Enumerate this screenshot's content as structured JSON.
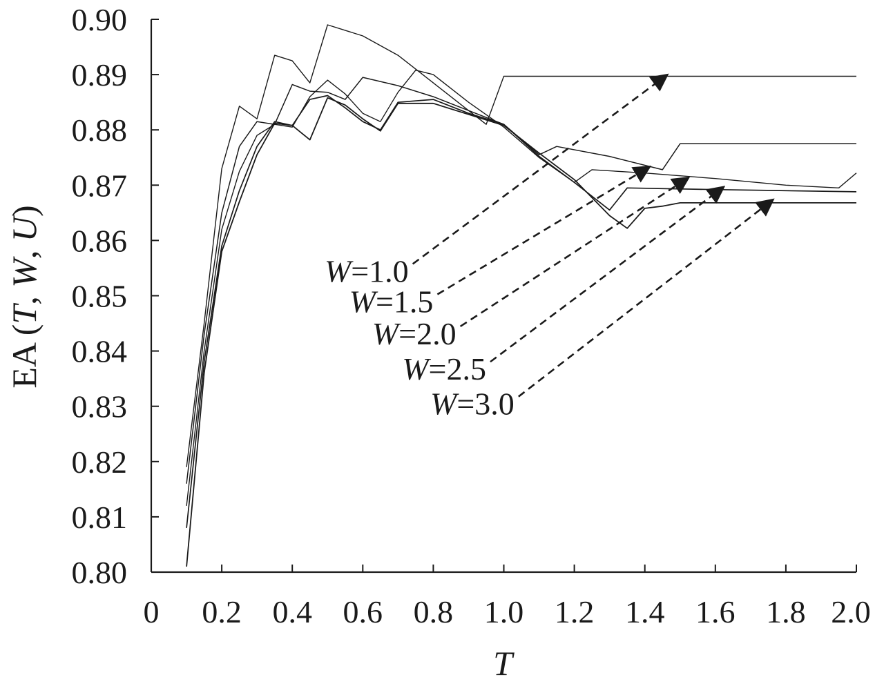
{
  "chart_data": {
    "type": "line",
    "title": "",
    "xlabel": "T",
    "ylabel": {
      "prefix": "EA (",
      "v1": "T",
      "sep1": ", ",
      "v2": "W",
      "sep2": ", ",
      "v3": "U",
      "suffix": ")"
    },
    "xlim": [
      0,
      2.0
    ],
    "ylim": [
      0.8,
      0.9
    ],
    "xticks": [
      "0",
      "0.2",
      "0.4",
      "0.6",
      "0.8",
      "1.0",
      "1.2",
      "1.4",
      "1.6",
      "1.8",
      "2.0"
    ],
    "yticks": [
      "0.80",
      "0.81",
      "0.82",
      "0.83",
      "0.84",
      "0.85",
      "0.86",
      "0.87",
      "0.88",
      "0.89",
      "0.90"
    ],
    "grid": false,
    "line_color": "#1a1a1a",
    "series": [
      {
        "name": "W=1.0",
        "points": [
          [
            0.1,
            0.819
          ],
          [
            0.15,
            0.845
          ],
          [
            0.2,
            0.873
          ],
          [
            0.25,
            0.8843
          ],
          [
            0.3,
            0.882
          ],
          [
            0.35,
            0.8935
          ],
          [
            0.4,
            0.8925
          ],
          [
            0.45,
            0.8885
          ],
          [
            0.5,
            0.899
          ],
          [
            0.6,
            0.897
          ],
          [
            0.7,
            0.8935
          ],
          [
            0.8,
            0.8885
          ],
          [
            0.9,
            0.8835
          ],
          [
            0.95,
            0.881
          ],
          [
            1.0,
            0.8897
          ],
          [
            1.2,
            0.8897
          ],
          [
            1.4,
            0.8897
          ],
          [
            1.6,
            0.8897
          ],
          [
            1.8,
            0.8897
          ],
          [
            2.0,
            0.8897
          ]
        ],
        "arrow_to": [
          1.46,
          0.8898
        ],
        "label": {
          "var": "W",
          "eq": "=1.0",
          "at": [
            0.73,
            0.8545
          ]
        }
      },
      {
        "name": "W=1.5",
        "points": [
          [
            0.1,
            0.816
          ],
          [
            0.15,
            0.843
          ],
          [
            0.2,
            0.865
          ],
          [
            0.25,
            0.877
          ],
          [
            0.3,
            0.8815
          ],
          [
            0.35,
            0.881
          ],
          [
            0.4,
            0.8882
          ],
          [
            0.45,
            0.887
          ],
          [
            0.5,
            0.8868
          ],
          [
            0.55,
            0.8855
          ],
          [
            0.6,
            0.8895
          ],
          [
            0.7,
            0.888
          ],
          [
            0.8,
            0.886
          ],
          [
            0.9,
            0.8835
          ],
          [
            1.0,
            0.881
          ],
          [
            1.1,
            0.8755
          ],
          [
            1.15,
            0.877
          ],
          [
            1.3,
            0.8752
          ],
          [
            1.45,
            0.8728
          ],
          [
            1.5,
            0.8775
          ],
          [
            1.7,
            0.8775
          ],
          [
            2.0,
            0.8775
          ]
        ],
        "arrow_to": [
          1.41,
          0.8732
        ],
        "label": {
          "var": "W",
          "eq": "=1.5",
          "at": [
            0.8,
            0.849
          ]
        }
      },
      {
        "name": "W=2.0",
        "points": [
          [
            0.1,
            0.812
          ],
          [
            0.15,
            0.84
          ],
          [
            0.2,
            0.862
          ],
          [
            0.25,
            0.8725
          ],
          [
            0.3,
            0.879
          ],
          [
            0.35,
            0.881
          ],
          [
            0.4,
            0.8805
          ],
          [
            0.45,
            0.886
          ],
          [
            0.5,
            0.889
          ],
          [
            0.55,
            0.8865
          ],
          [
            0.6,
            0.883
          ],
          [
            0.65,
            0.8815
          ],
          [
            0.7,
            0.8868
          ],
          [
            0.75,
            0.8908
          ],
          [
            0.8,
            0.89
          ],
          [
            0.9,
            0.885
          ],
          [
            1.0,
            0.8805
          ],
          [
            1.1,
            0.875
          ],
          [
            1.2,
            0.8705
          ],
          [
            1.25,
            0.8728
          ],
          [
            1.4,
            0.8722
          ],
          [
            1.6,
            0.8712
          ],
          [
            1.8,
            0.87
          ],
          [
            1.95,
            0.8695
          ],
          [
            2.0,
            0.8722
          ]
        ],
        "arrow_to": [
          1.52,
          0.8712
        ],
        "label": {
          "var": "W",
          "eq": "=2.0",
          "at": [
            0.865,
            0.8432
          ]
        }
      },
      {
        "name": "W=2.5",
        "points": [
          [
            0.1,
            0.808
          ],
          [
            0.15,
            0.838
          ],
          [
            0.2,
            0.859
          ],
          [
            0.25,
            0.869
          ],
          [
            0.3,
            0.877
          ],
          [
            0.35,
            0.8815
          ],
          [
            0.4,
            0.8808
          ],
          [
            0.45,
            0.8855
          ],
          [
            0.5,
            0.8862
          ],
          [
            0.55,
            0.884
          ],
          [
            0.6,
            0.8815
          ],
          [
            0.65,
            0.88
          ],
          [
            0.7,
            0.885
          ],
          [
            0.8,
            0.8855
          ],
          [
            0.9,
            0.883
          ],
          [
            1.0,
            0.881
          ],
          [
            1.1,
            0.8752
          ],
          [
            1.2,
            0.8705
          ],
          [
            1.3,
            0.8655
          ],
          [
            1.35,
            0.8695
          ],
          [
            1.6,
            0.8692
          ],
          [
            2.0,
            0.8688
          ]
        ],
        "arrow_to": [
          1.62,
          0.8695
        ],
        "label": {
          "var": "W",
          "eq": "=2.5",
          "at": [
            0.95,
            0.8368
          ]
        }
      },
      {
        "name": "W=3.0",
        "points": [
          [
            0.1,
            0.801
          ],
          [
            0.15,
            0.836
          ],
          [
            0.2,
            0.858
          ],
          [
            0.25,
            0.867
          ],
          [
            0.3,
            0.8755
          ],
          [
            0.35,
            0.8812
          ],
          [
            0.4,
            0.8808
          ],
          [
            0.45,
            0.8782
          ],
          [
            0.5,
            0.8858
          ],
          [
            0.55,
            0.8845
          ],
          [
            0.6,
            0.882
          ],
          [
            0.65,
            0.8798
          ],
          [
            0.7,
            0.8848
          ],
          [
            0.8,
            0.8848
          ],
          [
            0.9,
            0.8828
          ],
          [
            1.0,
            0.8808
          ],
          [
            1.1,
            0.8758
          ],
          [
            1.2,
            0.871
          ],
          [
            1.3,
            0.8645
          ],
          [
            1.35,
            0.8622
          ],
          [
            1.4,
            0.8658
          ],
          [
            1.45,
            0.8662
          ],
          [
            1.5,
            0.8668
          ],
          [
            2.0,
            0.8668
          ]
        ],
        "arrow_to": [
          1.76,
          0.8672
        ],
        "label": {
          "var": "W",
          "eq": "=3.0",
          "at": [
            1.03,
            0.8305
          ]
        }
      }
    ]
  }
}
